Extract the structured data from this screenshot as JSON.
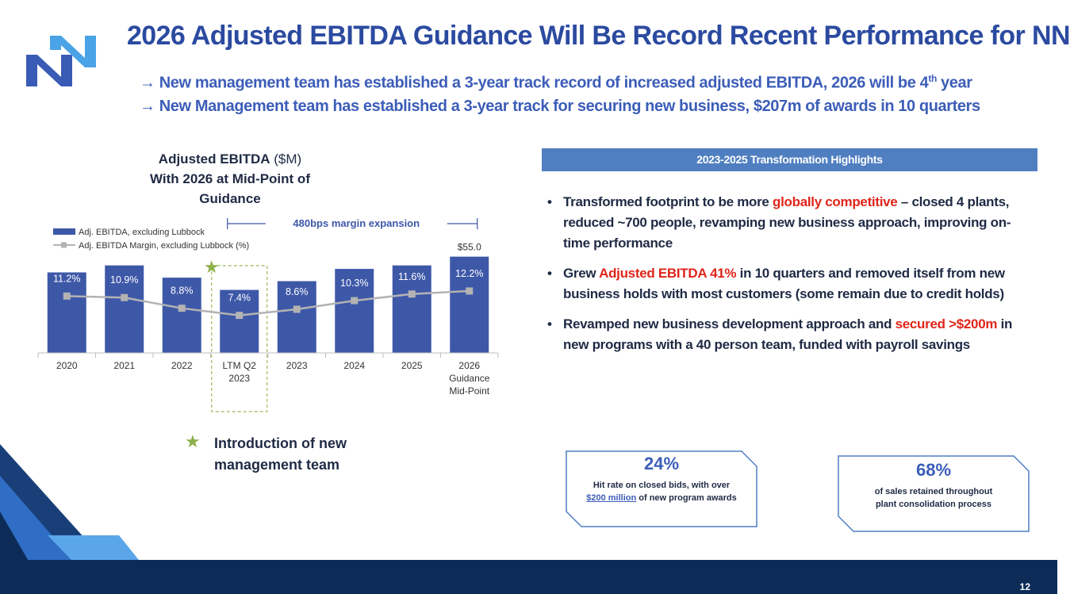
{
  "header": {
    "title": "2026 Adjusted EBITDA Guidance Will Be Record Recent Performance for NN",
    "subtitle_1": "→ New management team has established a 3-year track record of increased adjusted EBITDA, 2026 will be 4",
    "subtitle_1_sup": "th",
    "subtitle_1_end": " year",
    "subtitle_2": "→ New Management team has established a 3-year track for securing new business, $207m of awards in 10 quarters"
  },
  "chart_title": {
    "line1_bold": "Adjusted EBITDA",
    "line1_rest": " ($M)",
    "line2": "With 2026 at Mid-Point of Guidance"
  },
  "chart_data": {
    "type": "bar",
    "categories": [
      "2020",
      "2021",
      "2022",
      "LTM Q2 2023",
      "2023",
      "2024",
      "2025",
      "2026 Guidance Mid-Point"
    ],
    "category_lines": [
      [
        "2020"
      ],
      [
        "2021"
      ],
      [
        "2022"
      ],
      [
        "LTM Q2",
        "2023"
      ],
      [
        "2023"
      ],
      [
        "2024"
      ],
      [
        "2025"
      ],
      [
        "2026",
        "Guidance",
        "Mid-Point"
      ]
    ],
    "series": [
      {
        "name": "Adj. EBITDA, excluding Lubbock",
        "type": "bar",
        "values": [
          46,
          50,
          43,
          36,
          41,
          48,
          50,
          55
        ],
        "color": "#3e58a8"
      },
      {
        "name": "Adj. EBITDA Margin, excluding Lubbock (%)",
        "type": "line",
        "values": [
          11.2,
          10.9,
          8.8,
          7.4,
          8.6,
          10.3,
          11.6,
          12.2
        ],
        "color": "#b3b3b3"
      }
    ],
    "margin_labels": [
      "11.2%",
      "10.9%",
      "8.8%",
      "7.4%",
      "8.6%",
      "10.3%",
      "11.6%",
      "12.2%"
    ],
    "value_label": "$55.0",
    "annotation": "480bps margin expansion",
    "ylim_bar": [
      0,
      58
    ],
    "ylim_margin": [
      0,
      20
    ],
    "highlight_category": "LTM Q2 2023"
  },
  "intro": {
    "text": "Introduction of new management team"
  },
  "highlights": {
    "header": "2023-2025 Transformation Highlights",
    "items": [
      {
        "a": "Transformed footprint to be more ",
        "b": "globally competitive",
        "c": " – closed 4 plants, reduced ~700 people, revamping new business approach, improving on-time performance"
      },
      {
        "a": "Grew ",
        "b": "Adjusted EBITDA 41%",
        "c": " in 10 quarters and removed itself from new business holds with most customers (some remain due to credit holds)"
      },
      {
        "a": "Revamped new business development approach and ",
        "b": "secured >$200m",
        "c": " in new programs with a 40 person team, funded with payroll savings"
      }
    ]
  },
  "stats": [
    {
      "value": "24%",
      "desc_a": "Hit rate on closed bids, with over",
      "desc_hl": "$200 million",
      "desc_b": " of new program awards"
    },
    {
      "value": "68%",
      "desc_a": "of sales retained throughout plant consolidation process",
      "desc_hl": "",
      "desc_b": ""
    }
  ],
  "footer": {
    "page": "12"
  },
  "colors": {
    "brand": "#2b4aa0",
    "bar": "#3e58a8",
    "accent_red": "#e0251b",
    "footer": "#0c2c57"
  }
}
